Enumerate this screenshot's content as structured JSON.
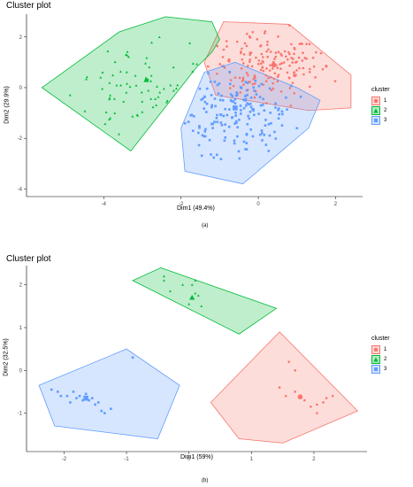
{
  "chart_data": [
    {
      "type": "scatter",
      "title": "Cluster plot",
      "xlabel": "Dim1 (49.4%)",
      "ylabel": "Dim2 (29.9%)",
      "xlim": [
        -6,
        2.7
      ],
      "ylim": [
        -4.3,
        2.9
      ],
      "xticks": [
        -4,
        -2,
        0,
        2
      ],
      "yticks": [
        -4,
        -2,
        0,
        2
      ],
      "xtick_labels": [
        "-4",
        "-2",
        "0",
        "2"
      ],
      "ytick_labels": [
        "-4",
        "-2",
        "0",
        "2"
      ],
      "caption": "(a)",
      "legend": {
        "title": "cluster",
        "placement": "right",
        "entries": [
          "1",
          "2",
          "3"
        ]
      },
      "series": [
        {
          "name": "1",
          "color": "#F8766D",
          "fill": "#F8766D",
          "marker": "circle",
          "hull": [
            [
              -0.9,
              2.6
            ],
            [
              0.8,
              2.5
            ],
            [
              2.4,
              0.5
            ],
            [
              2.4,
              -0.8
            ],
            [
              1.3,
              -0.9
            ],
            [
              -1.1,
              -0.3
            ],
            [
              -1.4,
              1.0
            ]
          ],
          "centroid": [
            0.4,
            0.9
          ],
          "n": 170,
          "seed": 11,
          "spread": [
            0.85,
            0.75
          ]
        },
        {
          "name": "2",
          "color": "#00BA38",
          "fill": "#00BA38",
          "marker": "triangle",
          "hull": [
            [
              -5.6,
              0.0
            ],
            [
              -3.6,
              2.2
            ],
            [
              -2.4,
              2.8
            ],
            [
              -1.2,
              2.6
            ],
            [
              -1.0,
              1.9
            ],
            [
              -1.2,
              1.4
            ],
            [
              -1.6,
              0.8
            ],
            [
              -3.3,
              -2.5
            ]
          ],
          "centroid": [
            -2.9,
            0.3
          ],
          "n": 70,
          "seed": 23,
          "spread": [
            0.9,
            0.9
          ]
        },
        {
          "name": "3",
          "color": "#619CFF",
          "fill": "#619CFF",
          "marker": "square",
          "hull": [
            [
              -1.4,
              0.6
            ],
            [
              -0.6,
              1.0
            ],
            [
              1.0,
              0.0
            ],
            [
              1.6,
              -0.5
            ],
            [
              1.3,
              -1.6
            ],
            [
              -0.4,
              -3.8
            ],
            [
              -1.9,
              -3.3
            ],
            [
              -2.0,
              -1.6
            ]
          ],
          "centroid": [
            -0.6,
            -0.8
          ],
          "n": 170,
          "seed": 37,
          "spread": [
            0.7,
            0.9
          ]
        }
      ]
    },
    {
      "type": "scatter",
      "title": "Cluster plot",
      "xlabel": "Dim1 (59%)",
      "ylabel": "Dim2 (32.5%)",
      "xlim": [
        -2.6,
        2.85
      ],
      "ylim": [
        -1.9,
        2.45
      ],
      "xticks": [
        -2,
        -1,
        0,
        1,
        2
      ],
      "yticks": [
        -1,
        0,
        1,
        2
      ],
      "xtick_labels": [
        "-2",
        "-1",
        "0",
        "1",
        "2"
      ],
      "ytick_labels": [
        "-1",
        "0",
        "1",
        "2"
      ],
      "caption": "(b)",
      "legend": {
        "title": "cluster",
        "placement": "right",
        "entries": [
          "1",
          "2",
          "3"
        ]
      },
      "series": [
        {
          "name": "1",
          "color": "#F8766D",
          "fill": "#F8766D",
          "marker": "circle",
          "hull": [
            [
              0.35,
              -0.75
            ],
            [
              1.45,
              0.9
            ],
            [
              2.7,
              -0.95
            ],
            [
              1.5,
              -1.7
            ],
            [
              0.8,
              -1.6
            ]
          ],
          "centroid": [
            1.78,
            -0.62
          ],
          "points": [
            [
              1.6,
              0.2
            ],
            [
              1.7,
              0.0
            ],
            [
              1.45,
              -0.4
            ],
            [
              1.7,
              -0.5
            ],
            [
              1.85,
              -0.7
            ],
            [
              1.95,
              -0.85
            ],
            [
              2.05,
              -0.8
            ],
            [
              2.15,
              -0.75
            ],
            [
              2.2,
              -0.65
            ],
            [
              2.3,
              -0.6
            ],
            [
              2.05,
              -1.0
            ],
            [
              1.55,
              -0.6
            ]
          ]
        },
        {
          "name": "2",
          "color": "#00BA38",
          "fill": "#00BA38",
          "marker": "triangle",
          "hull": [
            [
              -0.45,
              2.4
            ],
            [
              1.4,
              1.45
            ],
            [
              0.8,
              0.85
            ],
            [
              -0.9,
              2.1
            ]
          ],
          "centroid": [
            0.05,
            1.7
          ],
          "points": [
            [
              -0.4,
              2.2
            ],
            [
              -0.4,
              2.1
            ],
            [
              -0.1,
              2.0
            ],
            [
              0.05,
              2.0
            ],
            [
              0.1,
              2.1
            ],
            [
              -0.3,
              1.85
            ],
            [
              0.1,
              1.8
            ],
            [
              0.15,
              1.75
            ],
            [
              0.0,
              1.55
            ],
            [
              0.2,
              1.5
            ]
          ]
        },
        {
          "name": "3",
          "color": "#619CFF",
          "fill": "#619CFF",
          "marker": "square",
          "hull": [
            [
              -2.4,
              -0.35
            ],
            [
              -1.0,
              0.5
            ],
            [
              -0.15,
              -0.35
            ],
            [
              -0.5,
              -1.6
            ],
            [
              -2.15,
              -1.3
            ]
          ],
          "centroid": [
            -1.65,
            -0.65
          ],
          "points": [
            [
              -0.9,
              0.3
            ],
            [
              -2.2,
              -0.45
            ],
            [
              -2.1,
              -0.5
            ],
            [
              -1.95,
              -0.6
            ],
            [
              -1.8,
              -0.65
            ],
            [
              -1.75,
              -0.6
            ],
            [
              -1.7,
              -0.7
            ],
            [
              -1.65,
              -0.55
            ],
            [
              -1.6,
              -0.7
            ],
            [
              -1.55,
              -0.65
            ],
            [
              -1.5,
              -0.8
            ],
            [
              -1.45,
              -0.75
            ],
            [
              -1.4,
              -0.95
            ],
            [
              -1.35,
              -1.0
            ],
            [
              -1.25,
              -0.9
            ],
            [
              -1.9,
              -0.75
            ],
            [
              -2.05,
              -0.6
            ],
            [
              -1.85,
              -0.5
            ]
          ]
        }
      ]
    }
  ]
}
